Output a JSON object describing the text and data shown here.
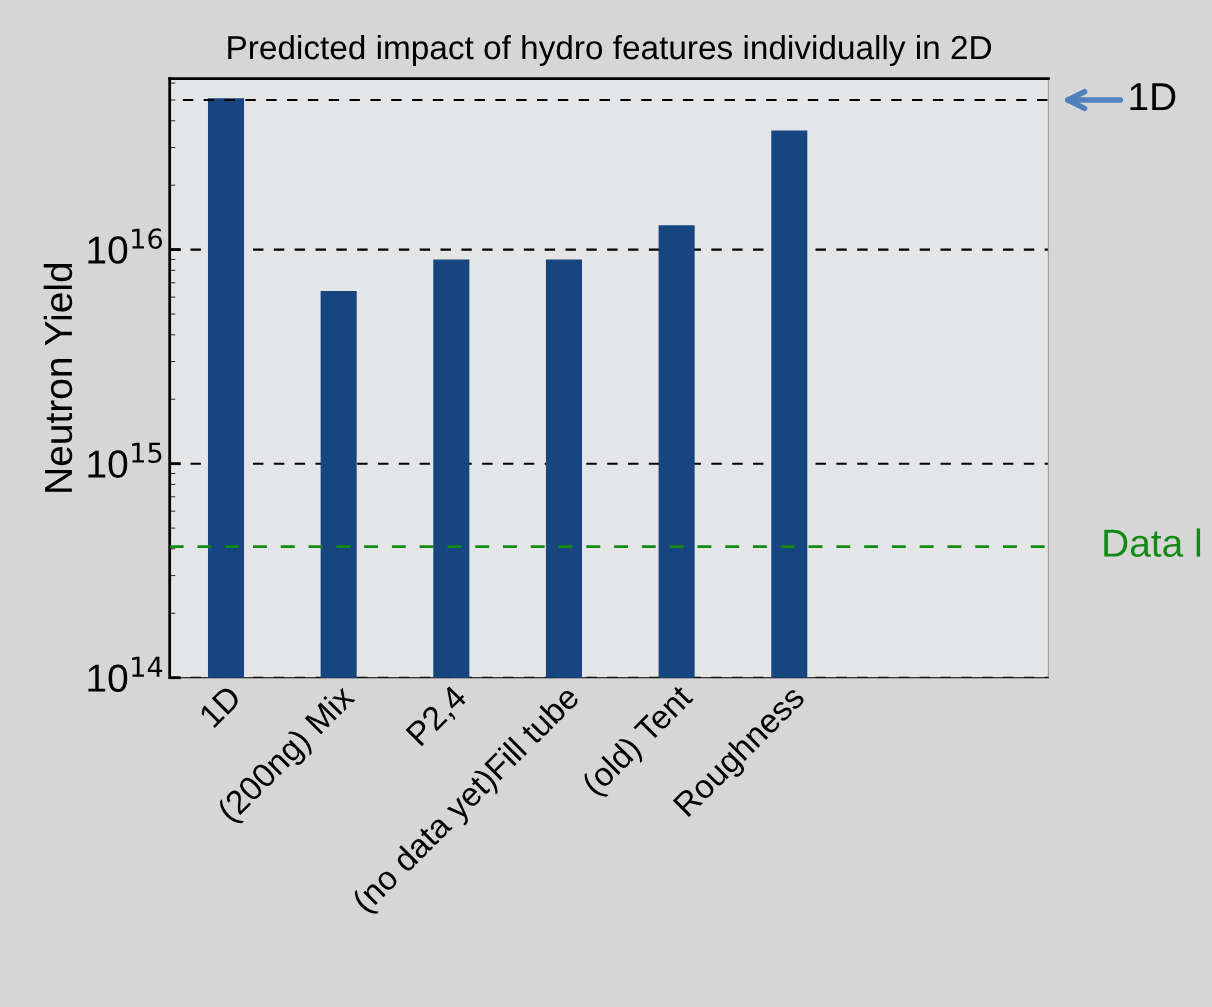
{
  "chart_data": {
    "type": "bar",
    "title": "Predicted impact of hydro features individually in 2D",
    "ylabel": "Neutron Yield",
    "categories": [
      "1D",
      "(200ng) Mix",
      "P2,4",
      "(no data yet)Fill tube",
      "(old) Tent",
      "Roughness"
    ],
    "values": [
      5.1e+16,
      6400000000000000.0,
      9000000000000000.0,
      9000000000000000.0,
      1.3e+16,
      3.6e+16
    ],
    "color": "#17457f",
    "log": "y",
    "ylim": [
      100000000000000.0,
      6.3e+16
    ],
    "yticks": [
      {
        "value": 100000000000000.0,
        "label": "10$^{14}$"
      },
      {
        "value": 1000000000000000.0,
        "label": "10$^{15}$"
      },
      {
        "value": 1e+16,
        "label": "10$^{16}$"
      }
    ],
    "grid": "y",
    "ref_lines": [
      {
        "axis": "y",
        "value": 5e+16,
        "label": "1D",
        "color": "#000000",
        "line_style": "dashed"
      },
      {
        "axis": "y",
        "value": 410000000000000.0,
        "label": "Data l",
        "color": "#138a13",
        "line_style": "dashed"
      }
    ]
  }
}
